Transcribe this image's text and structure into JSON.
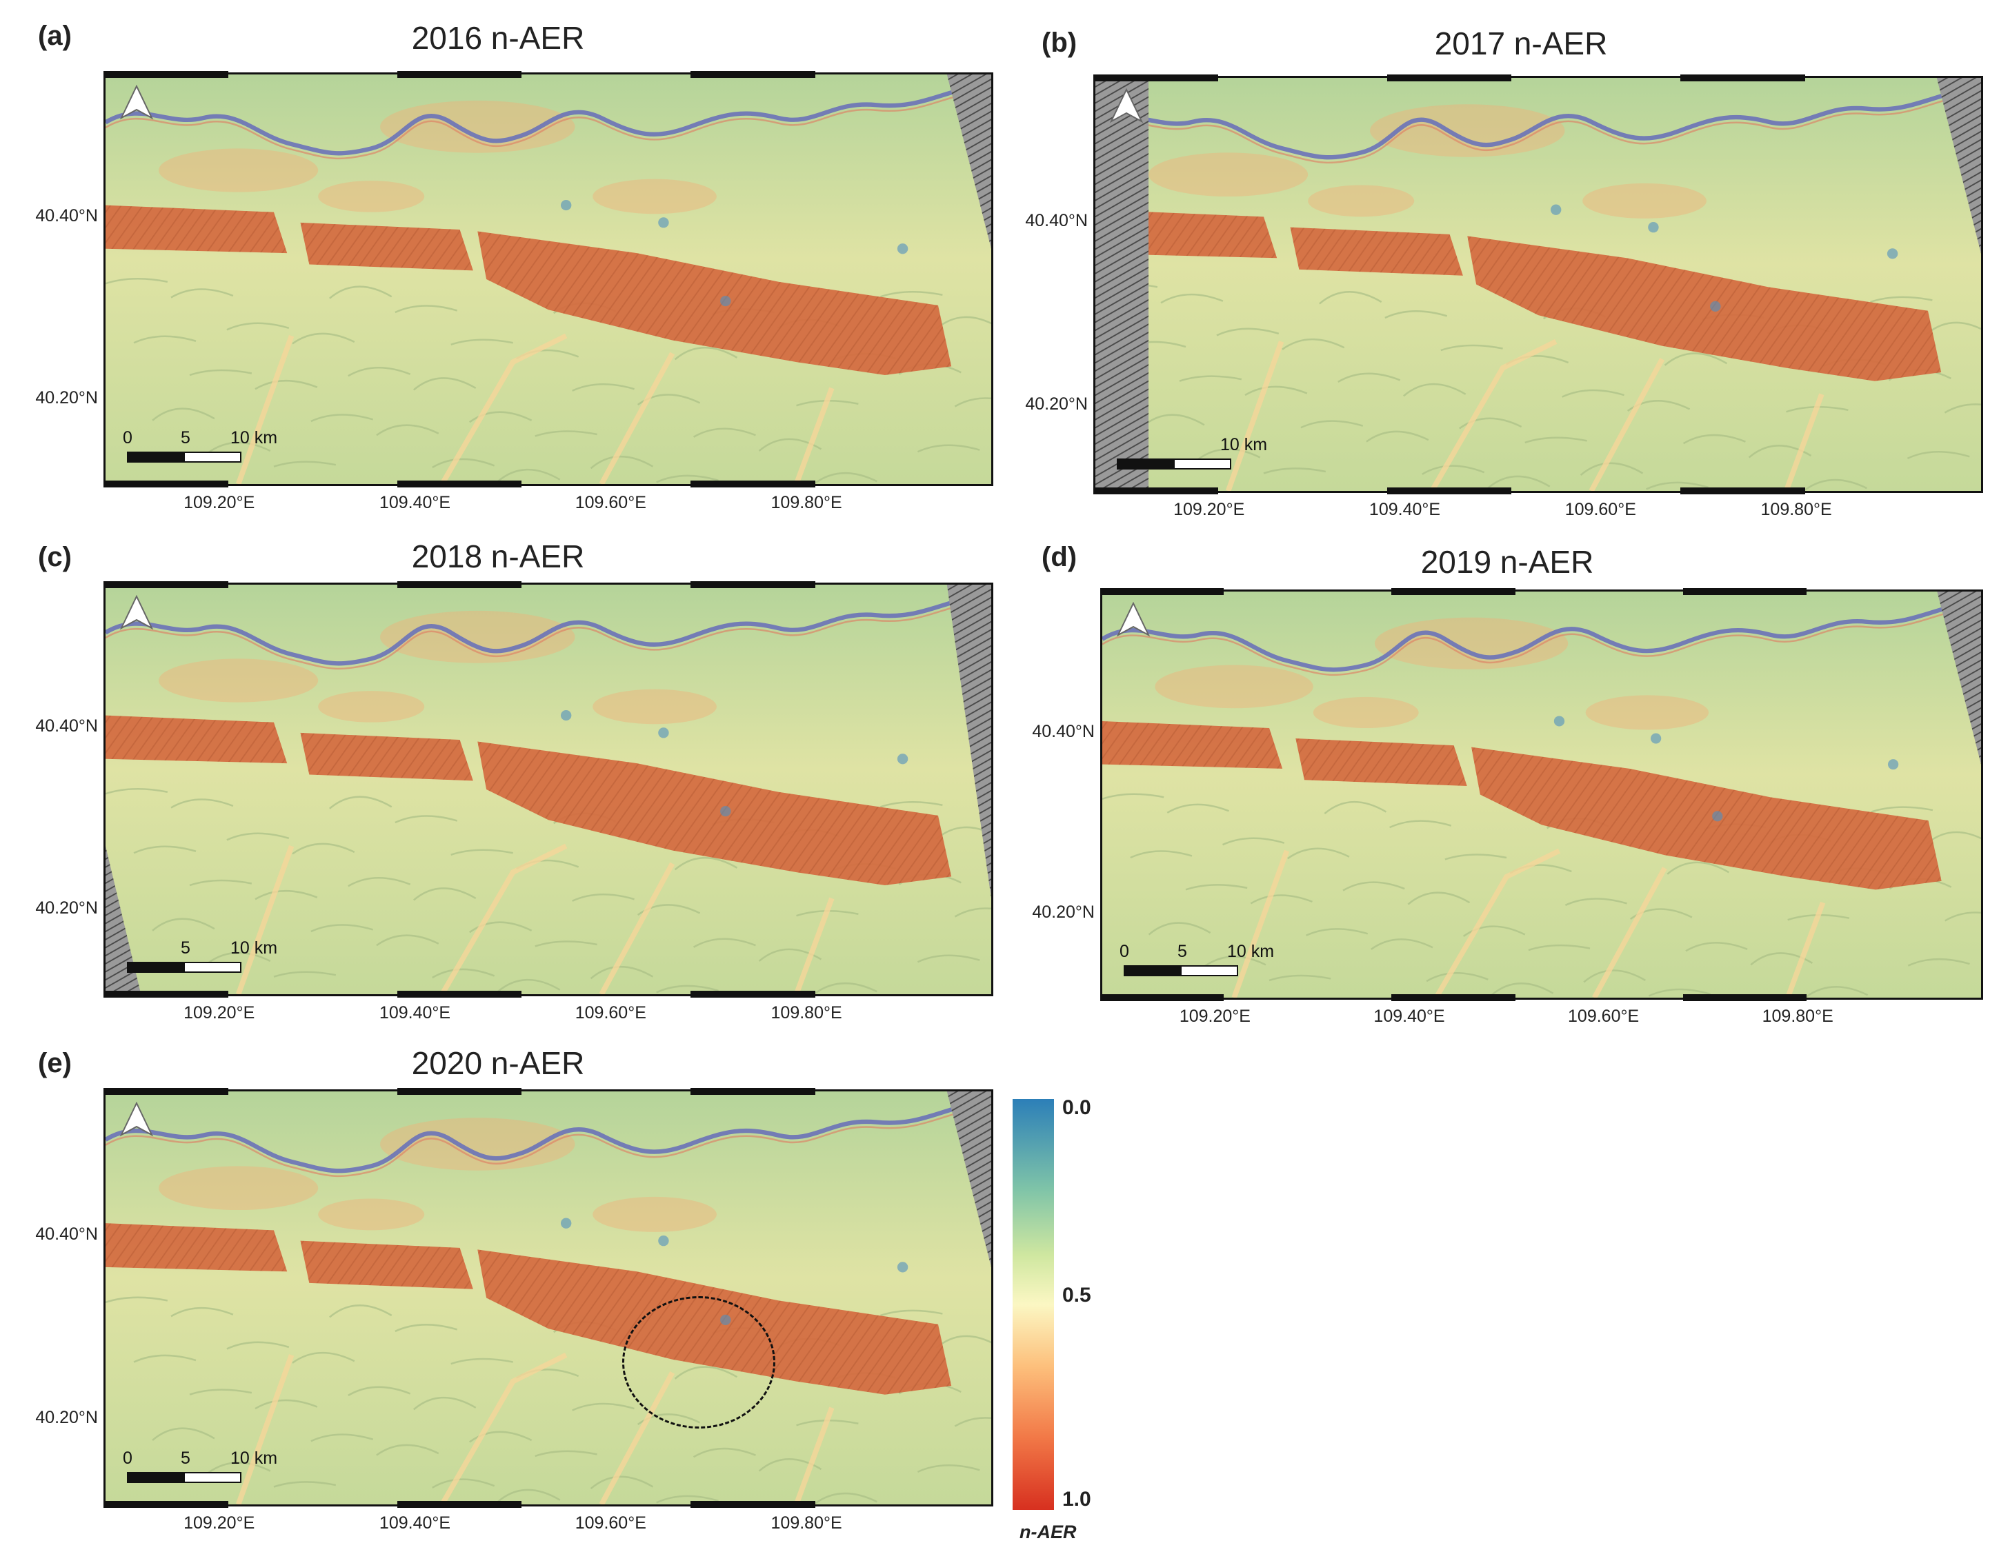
{
  "panels": [
    {
      "letter": "(a)",
      "title": "2016 n-AER",
      "scale": [
        "0",
        "5",
        "10 km"
      ]
    },
    {
      "letter": "(b)",
      "title": "2017 n-AER",
      "scale": [
        "",
        "",
        "10 km"
      ]
    },
    {
      "letter": "(c)",
      "title": "2018 n-AER",
      "scale": [
        "",
        "5",
        "10 km"
      ]
    },
    {
      "letter": "(d)",
      "title": "2019 n-AER",
      "scale": [
        "0",
        "5",
        "10 km"
      ]
    },
    {
      "letter": "(e)",
      "title": "2020 n-AER",
      "scale": [
        "0",
        "5",
        "10 km"
      ]
    }
  ],
  "lat_labels": [
    "40.40°N",
    "40.20°N"
  ],
  "lon_labels": [
    "109.20°E",
    "109.40°E",
    "109.60°E",
    "109.80°E"
  ],
  "colorbar": {
    "ticks": [
      "0.0",
      "0.5",
      "1.0"
    ],
    "label": "n-AER",
    "range": [
      0.0,
      1.0
    ],
    "colors": {
      "low": "#2c7fb8",
      "mid": "#fbf7c3",
      "high": "#d7301f"
    }
  },
  "map_colors": {
    "background": "#c5d99a",
    "desert_belt": "#d46a3f",
    "river": "#6a72b8",
    "hillshade": "#8a8a8a"
  },
  "icons": {
    "north_arrow": "north-arrow-icon"
  }
}
